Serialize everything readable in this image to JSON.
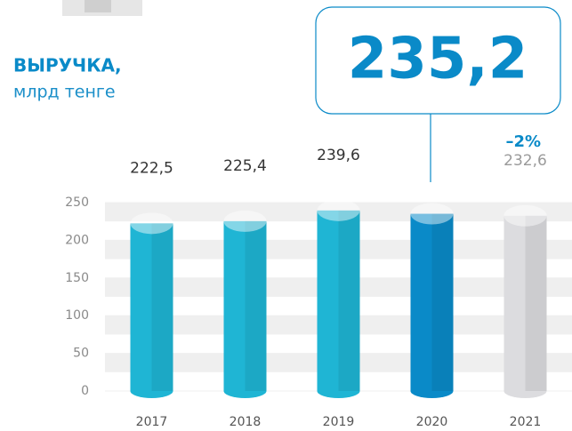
{
  "chart_data": {
    "type": "bar",
    "title": "ВЫРУЧКА,",
    "subtitle": "млрд тенге",
    "highlight_change": "–2%",
    "categories": [
      "2017",
      "2018",
      "2019",
      "2020",
      "2021"
    ],
    "values": [
      222.5,
      225.4,
      239.6,
      235.2,
      232.6
    ],
    "value_labels": [
      "222,5",
      "225,4",
      "239,6",
      "235,2",
      "232,6"
    ],
    "colors": [
      "#1fb5d4",
      "#1fb5d4",
      "#1fb5d4",
      "#0a8ac8",
      "#dcdcdf"
    ],
    "ylim": [
      0,
      250
    ],
    "yticks": [
      0,
      50,
      100,
      150,
      200,
      250
    ],
    "grid": true
  }
}
